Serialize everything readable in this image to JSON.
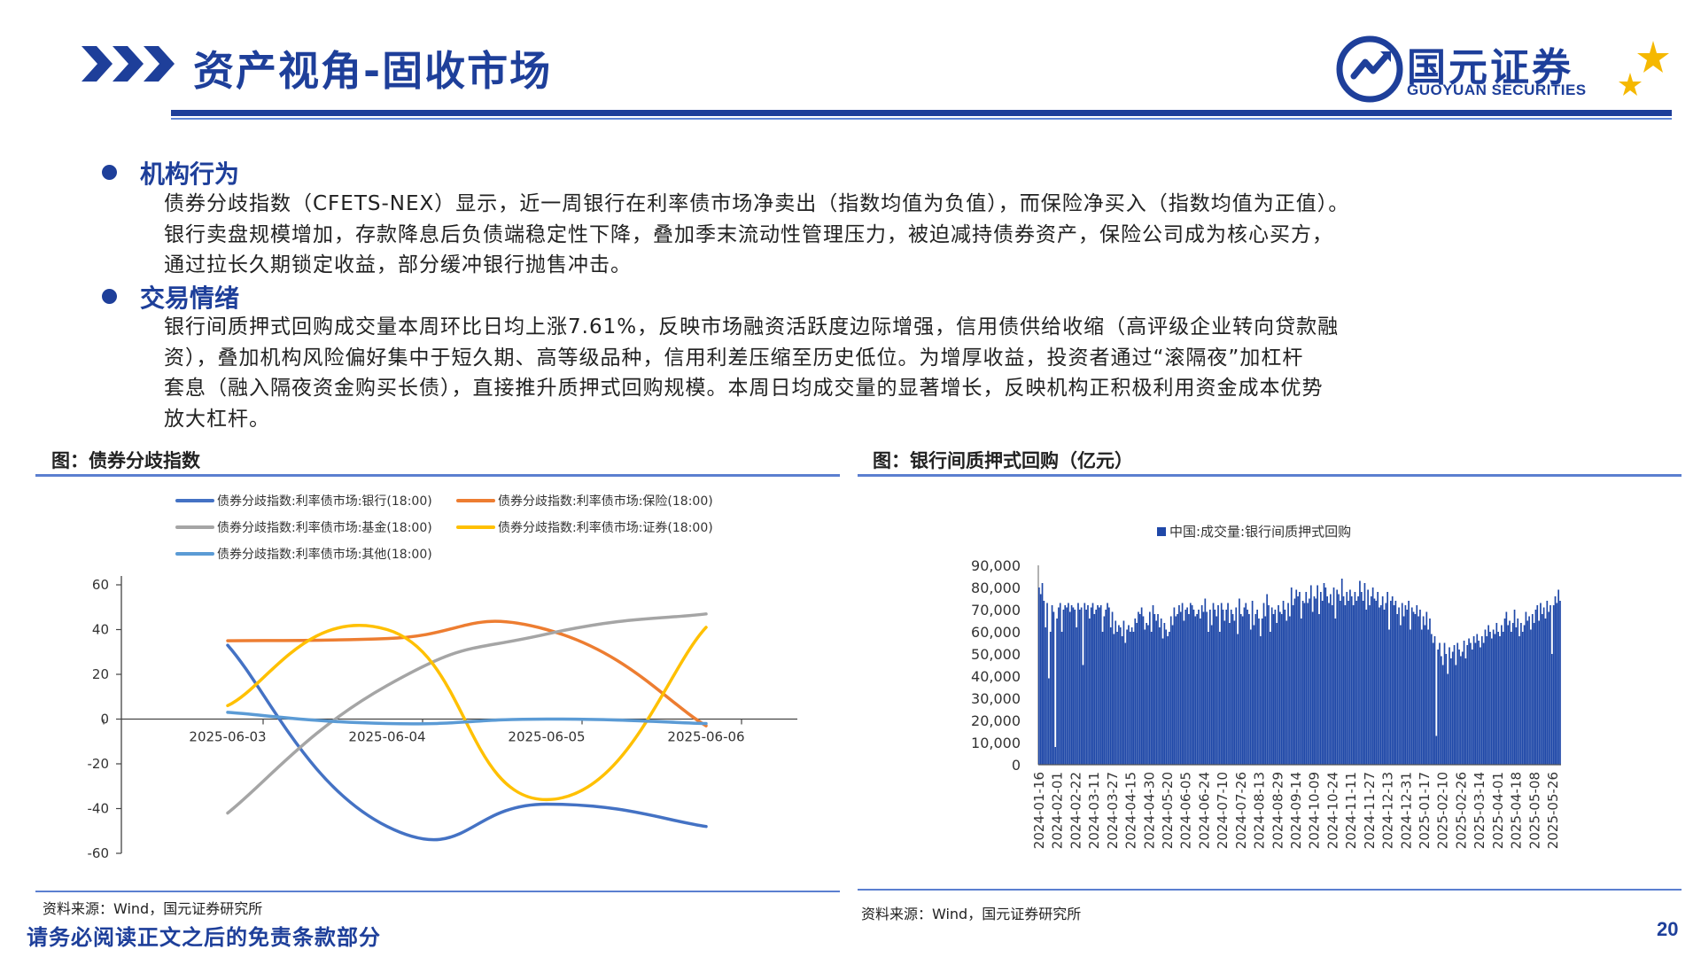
{
  "header": {
    "title": "资产视角-固收市场",
    "logo_cn": "国元证券",
    "logo_en": "GUOYUAN SECURITIES"
  },
  "sections": [
    {
      "title": "机构行为",
      "paragraphs": [
        "债券分歧指数（CFETS-NEX）显示，近一周银行在利率债市场净卖出（指数均值为负值），而保险净买入（指数均值为正值）。",
        "银行卖盘规模增加，存款降息后负债端稳定性下降，叠加季末流动性管理压力，被迫减持债券资产，保险公司成为核心买方，",
        "通过拉长久期锁定收益，部分缓冲银行抛售冲击。"
      ]
    },
    {
      "title": "交易情绪",
      "paragraphs": [
        "银行间质押式回购成交量本周环比日均上涨7.61%，反映市场融资活跃度边际增强，信用债供给收缩（高评级企业转向贷款融",
        "资），叠加机构风险偏好集中于短久期、高等级品种，信用利差压缩至历史低位。为增厚收益，投资者通过“滚隔夜”加杠杆",
        "套息（融入隔夜资金购买长债），直接推升质押式回购规模。本周日均成交量的显著增长，反映机构正积极利用资金成本优势",
        "放大杠杆。"
      ]
    }
  ],
  "left_chart": {
    "title": "图：债券分歧指数",
    "source": "资料来源：Wind，国元证券研究所"
  },
  "right_chart": {
    "title": "图：银行间质押式回购（亿元）",
    "source": "资料来源：Wind，国元证券研究所"
  },
  "footer": {
    "disclaimer": "请务必阅读正文之后的免责条款部分",
    "page_number": "20"
  },
  "chart_data": [
    {
      "type": "line",
      "smooth": true,
      "x": [
        "2025-06-03",
        "2025-06-04",
        "2025-06-05",
        "2025-06-06"
      ],
      "ylim": [
        -60,
        60
      ],
      "yticks": [
        "60",
        "40",
        "20",
        "0",
        "-20",
        "-40",
        "-60"
      ],
      "legend_position": "top",
      "grid": false,
      "series": [
        {
          "name": "债券分歧指数:利率债市场:银行(18:00)",
          "color": "#4472c4",
          "values": [
            33,
            -48,
            -38,
            -48
          ]
        },
        {
          "name": "债券分歧指数:利率债市场:保险(18:00)",
          "color": "#ed7d31",
          "values": [
            35,
            36,
            40,
            -3
          ]
        },
        {
          "name": "债券分歧指数:利率债市场:基金(18:00)",
          "color": "#a5a5a5",
          "values": [
            -42,
            15,
            38,
            47
          ]
        },
        {
          "name": "债券分歧指数:利率债市场:证券(18:00)",
          "color": "#ffc000",
          "values": [
            6,
            40,
            -36,
            41
          ]
        },
        {
          "name": "债券分歧指数:利率债市场:其他(18:00)",
          "color": "#5b9bd5",
          "values": [
            3,
            -2,
            0,
            -2
          ]
        }
      ]
    },
    {
      "type": "bar",
      "legend": "中国:成交量:银行间质押式回购",
      "color": "#1f48a8",
      "ylim": [
        0,
        90000
      ],
      "yticks": [
        "90,000",
        "80,000",
        "70,000",
        "60,000",
        "50,000",
        "40,000",
        "30,000",
        "20,000",
        "10,000",
        "0"
      ],
      "x_tick_labels": [
        "2024-01-16",
        "2024-02-01",
        "2024-02-22",
        "2024-03-11",
        "2024-03-27",
        "2024-04-15",
        "2024-04-30",
        "2024-05-20",
        "2024-06-05",
        "2024-06-24",
        "2024-07-10",
        "2024-07-26",
        "2024-08-13",
        "2024-08-29",
        "2024-09-14",
        "2024-10-09",
        "2024-10-24",
        "2024-11-11",
        "2024-11-27",
        "2024-12-13",
        "2024-12-31",
        "2025-01-17",
        "2025-02-10",
        "2025-02-26",
        "2025-03-14",
        "2025-04-01",
        "2025-04-18",
        "2025-05-08",
        "2025-05-26"
      ],
      "values": [
        80000,
        77000,
        82000,
        74000,
        62000,
        73000,
        39000,
        60000,
        72000,
        69000,
        8000,
        66000,
        71000,
        73000,
        60000,
        70000,
        72000,
        71000,
        73000,
        69000,
        72000,
        71000,
        70000,
        62000,
        73000,
        70000,
        71000,
        45000,
        73000,
        70000,
        72000,
        66000,
        71000,
        73000,
        68000,
        70000,
        72000,
        71000,
        72000,
        60000,
        67000,
        70000,
        73000,
        71000,
        62000,
        69000,
        59000,
        65000,
        60000,
        63000,
        62000,
        58000,
        65000,
        55000,
        61000,
        63000,
        60000,
        62000,
        60000,
        66000,
        64000,
        69000,
        68000,
        71000,
        67000,
        61000,
        64000,
        63000,
        69000,
        60000,
        72000,
        68000,
        65000,
        68000,
        62000,
        66000,
        57000,
        64000,
        61000,
        58000,
        60000,
        67000,
        63000,
        71000,
        67000,
        68000,
        72000,
        69000,
        73000,
        65000,
        70000,
        71000,
        68000,
        73000,
        72000,
        70000,
        67000,
        68000,
        70000,
        66000,
        72000,
        69000,
        75000,
        69000,
        60000,
        70000,
        63000,
        73000,
        70000,
        67000,
        72000,
        60000,
        73000,
        70000,
        65000,
        70000,
        73000,
        64000,
        70000,
        68000,
        65000,
        71000,
        59000,
        75000,
        68000,
        67000,
        71000,
        73000,
        70000,
        68000,
        61000,
        74000,
        63000,
        68000,
        70000,
        66000,
        58000,
        66000,
        73000,
        67000,
        77000,
        72000,
        60000,
        71000,
        68000,
        70000,
        64000,
        72000,
        69000,
        68000,
        74000,
        70000,
        65000,
        73000,
        67000,
        80000,
        72000,
        75000,
        79000,
        76000,
        78000,
        66000,
        74000,
        73000,
        78000,
        73000,
        75000,
        81000,
        69000,
        76000,
        75000,
        81000,
        68000,
        78000,
        74000,
        82000,
        80000,
        76000,
        73000,
        77000,
        72000,
        80000,
        66000,
        79000,
        77000,
        74000,
        84000,
        76000,
        72000,
        78000,
        74000,
        79000,
        76000,
        72000,
        78000,
        74000,
        76000,
        83000,
        78000,
        74000,
        82000,
        70000,
        79000,
        72000,
        76000,
        80000,
        75000,
        74000,
        78000,
        71000,
        72000,
        76000,
        70000,
        73000,
        78000,
        61000,
        74000,
        76000,
        72000,
        74000,
        68000,
        71000,
        63000,
        73000,
        67000,
        72000,
        70000,
        74000,
        61000,
        71000,
        69000,
        68000,
        72000,
        67000,
        70000,
        61000,
        67000,
        63000,
        69000,
        61000,
        66000,
        59000,
        55000,
        58000,
        13000,
        52000,
        55000,
        49000,
        45000,
        55000,
        50000,
        41000,
        53000,
        48000,
        51000,
        54000,
        45000,
        55000,
        52000,
        49000,
        51000,
        56000,
        48000,
        54000,
        57000,
        55000,
        52000,
        58000,
        55000,
        59000,
        56000,
        53000,
        58000,
        55000,
        61000,
        58000,
        63000,
        60000,
        57000,
        61000,
        59000,
        64000,
        60000,
        58000,
        63000,
        60000,
        66000,
        69000,
        63000,
        65000,
        60000,
        64000,
        70000,
        62000,
        66000,
        58000,
        64000,
        60000,
        63000,
        69000,
        65000,
        67000,
        61000,
        68000,
        64000,
        70000,
        72000,
        65000,
        73000,
        68000,
        71000,
        66000,
        74000,
        69000,
        72000,
        50000,
        72000,
        76000,
        73000,
        79000,
        74000
      ]
    }
  ]
}
